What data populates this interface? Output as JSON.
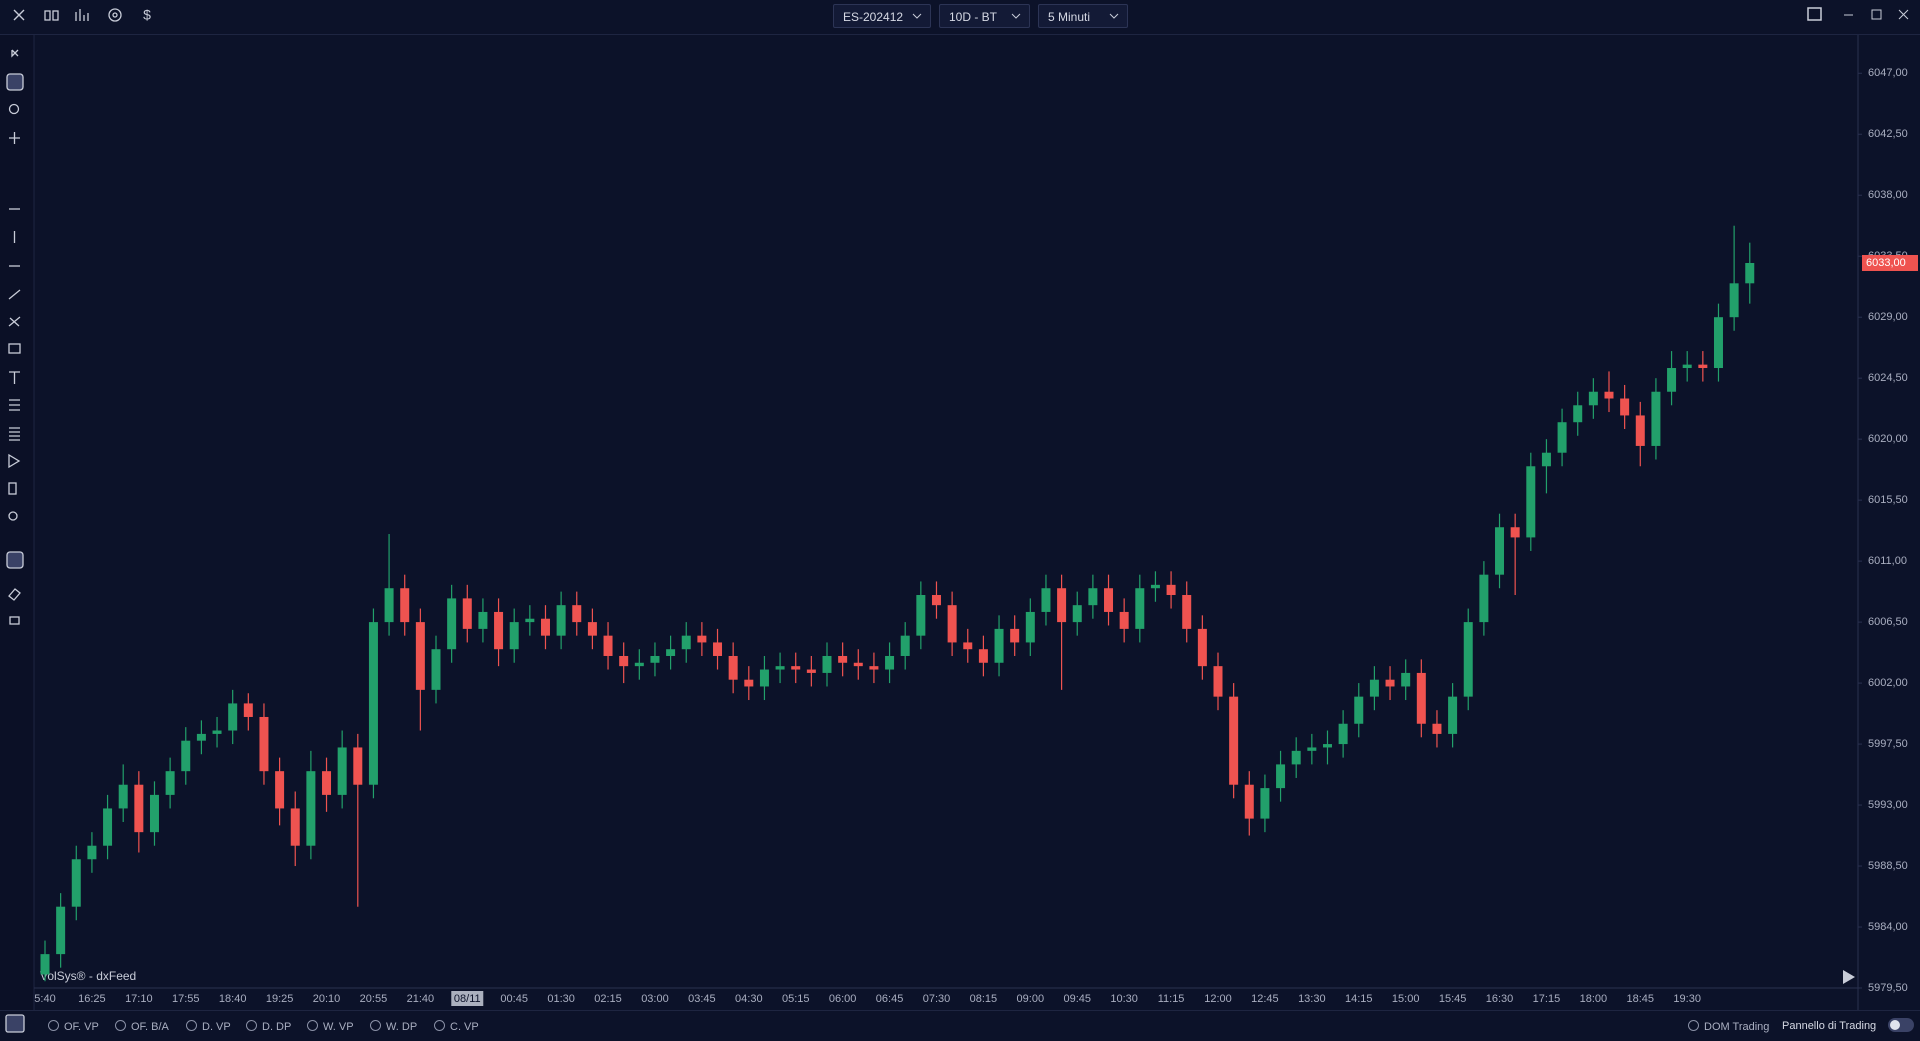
{
  "toolbar": {
    "symbol": "ES-202412",
    "range": "10D - BT",
    "timeframe": "5 Minuti",
    "currency": "$"
  },
  "watermark": "VolSys® - dxFeed",
  "bottom_bar": {
    "studies": [
      "OF. VP",
      "OF. B/A",
      "D. VP",
      "D. DP",
      "W. VP",
      "W. DP",
      "C. VP"
    ],
    "dom": "DOM Trading",
    "panel": "Pannello di Trading"
  },
  "chart_data": {
    "type": "candlestick",
    "categories": [
      "5:40",
      null,
      null,
      "16:25",
      null,
      null,
      "17:10",
      null,
      null,
      "17:55",
      null,
      null,
      "18:40",
      null,
      null,
      "19:25",
      null,
      null,
      "20:10",
      null,
      null,
      "20:55",
      null,
      null,
      "21:40",
      null,
      null,
      "08/11",
      null,
      null,
      "00:45",
      null,
      null,
      "01:30",
      null,
      null,
      "02:15",
      null,
      null,
      "03:00",
      null,
      null,
      "03:45",
      null,
      null,
      "04:30",
      null,
      null,
      "05:15",
      null,
      null,
      "06:00",
      null,
      null,
      "06:45",
      null,
      null,
      "07:30",
      null,
      null,
      "08:15",
      null,
      null,
      "09:00",
      null,
      null,
      "09:45",
      null,
      null,
      "10:30",
      null,
      null,
      "11:15",
      null,
      null,
      "12:00",
      null,
      null,
      "12:45",
      null,
      null,
      "13:30",
      null,
      null,
      "14:15",
      null,
      null,
      "15:00",
      null,
      null,
      "15:45",
      null,
      null,
      "16:30",
      null,
      null,
      "17:15",
      null,
      null,
      "18:00",
      null,
      null,
      "18:45",
      null,
      null,
      "19:30",
      null,
      null,
      null,
      null
    ],
    "open": [
      5980.5,
      5982,
      5985.5,
      5989,
      5990,
      5992.75,
      5994.5,
      5991,
      5993.75,
      5995.5,
      5997.75,
      5998.25,
      5998.5,
      6000.5,
      5999.5,
      5995.5,
      5992.75,
      5990,
      5995.5,
      5993.75,
      5997.25,
      5994.5,
      6006.5,
      6009,
      6006.5,
      6001.5,
      6004.5,
      6008.25,
      6006,
      6007.25,
      6004.5,
      6006.5,
      6006.75,
      6005.5,
      6007.75,
      6006.5,
      6005.5,
      6004,
      6003.25,
      6003.5,
      6004,
      6004.5,
      6005.5,
      6005,
      6004,
      6002.25,
      6001.75,
      6003,
      6003.25,
      6003,
      6002.75,
      6004,
      6003.5,
      6003.25,
      6003,
      6004,
      6005.5,
      6008.5,
      6007.75,
      6005,
      6004.5,
      6003.5,
      6006,
      6005,
      6007.25,
      6009,
      6006.5,
      6007.75,
      6009,
      6007.25,
      6006,
      6009,
      6009.25,
      6008.5,
      6006,
      6003.25,
      6001,
      5994.5,
      5992,
      5994.25,
      5996,
      5997,
      5997.25,
      5997.5,
      5999,
      6001,
      6002.25,
      6001.75,
      6002.75,
      5999,
      5998.25,
      6001,
      6006.5,
      6010,
      6013.5,
      6012.75,
      6018,
      6019,
      6021.25,
      6022.5,
      6023.5,
      6023,
      6021.75,
      6019.5,
      6023.5,
      6025.25,
      6025.5,
      6025.25,
      6029,
      6031.5
    ],
    "high": [
      5983,
      5986.5,
      5990,
      5991,
      5993.75,
      5996,
      5995.5,
      5994.75,
      5996.5,
      5998.75,
      5999.25,
      5999.5,
      6001.5,
      6001.25,
      6000.5,
      5996.5,
      5994,
      5997,
      5996.5,
      5998.5,
      5998.25,
      6007.5,
      6013,
      6010,
      6007.5,
      6005.5,
      6009.25,
      6009.25,
      6008.25,
      6008.25,
      6007.5,
      6007.75,
      6007.75,
      6008.75,
      6008.75,
      6007.5,
      6006.5,
      6005,
      6004.5,
      6005,
      6005.5,
      6006.5,
      6006.5,
      6006,
      6005,
      6003.25,
      6004,
      6004.25,
      6004.25,
      6004,
      6005,
      6005,
      6004.5,
      6004.25,
      6005,
      6006.5,
      6009.5,
      6009.5,
      6008.75,
      6006,
      6005.5,
      6007,
      6007,
      6008.25,
      6010,
      6010,
      6008.75,
      6010,
      6010,
      6008.25,
      6010,
      6010.25,
      6010.25,
      6009.5,
      6007,
      6004.25,
      6002,
      5995.5,
      5995.25,
      5997,
      5998,
      5998.25,
      5998.5,
      6000,
      6002,
      6003.25,
      6003.25,
      6003.75,
      6003.75,
      6000,
      6002,
      6007.5,
      6011,
      6014.5,
      6014.5,
      6019,
      6020,
      6022.25,
      6023.5,
      6024.5,
      6025,
      6024,
      6022.75,
      6024.5,
      6026.5,
      6026.5,
      6026.5,
      6030,
      6035.75,
      6034.5
    ],
    "low": [
      5980,
      5981,
      5984.5,
      5988,
      5989,
      5991.75,
      5989.5,
      5990,
      5992.75,
      5994.5,
      5996.75,
      5997.25,
      5997.5,
      5998.5,
      5994.5,
      5991.5,
      5988.5,
      5989,
      5992.5,
      5992.75,
      5985.5,
      5993.5,
      6005.5,
      6005.5,
      5998.5,
      6000.5,
      6003.5,
      6005,
      6005,
      6003.25,
      6003.5,
      6005.5,
      6004.5,
      6004.5,
      6005.5,
      6004.5,
      6003,
      6002,
      6002.25,
      6002.5,
      6003,
      6003.5,
      6004,
      6003,
      6001.25,
      6000.75,
      6000.75,
      6002,
      6002,
      6001.75,
      6001.75,
      6002.5,
      6002.25,
      6002,
      6002,
      6003,
      6004.5,
      6006.75,
      6004,
      6003.5,
      6002.5,
      6002.5,
      6004,
      6004,
      6006.25,
      6001.5,
      6005.5,
      6006.75,
      6006.25,
      6005,
      6005,
      6008,
      6007.5,
      6005,
      6002.25,
      6000,
      5993.5,
      5990.75,
      5991,
      5993.25,
      5995,
      5996,
      5996,
      5996.5,
      5998,
      6000,
      6000.75,
      6000.75,
      5998,
      5997.25,
      5997.25,
      6000,
      6005.5,
      6009,
      6008.5,
      6011.75,
      6016,
      6018,
      6020.25,
      6021.5,
      6022,
      6020.75,
      6018,
      6018.5,
      6022.5,
      6024.25,
      6024.25,
      6024.25,
      6028,
      6030
    ],
    "close": [
      5982,
      5985.5,
      5989,
      5990,
      5992.75,
      5994.5,
      5991,
      5993.75,
      5995.5,
      5997.75,
      5998.25,
      5998.5,
      6000.5,
      5999.5,
      5995.5,
      5992.75,
      5990,
      5995.5,
      5993.75,
      5997.25,
      5994.5,
      6006.5,
      6009,
      6006.5,
      6001.5,
      6004.5,
      6008.25,
      6006,
      6007.25,
      6004.5,
      6006.5,
      6006.75,
      6005.5,
      6007.75,
      6006.5,
      6005.5,
      6004,
      6003.25,
      6003.5,
      6004,
      6004.5,
      6005.5,
      6005,
      6004,
      6002.25,
      6001.75,
      6003,
      6003.25,
      6003,
      6002.75,
      6004,
      6003.5,
      6003.25,
      6003,
      6004,
      6005.5,
      6008.5,
      6007.75,
      6005,
      6004.5,
      6003.5,
      6006,
      6005,
      6007.25,
      6009,
      6006.5,
      6007.75,
      6009,
      6007.25,
      6006,
      6009,
      6009.25,
      6008.5,
      6006,
      6003.25,
      6001,
      5994.5,
      5992,
      5994.25,
      5996,
      5997,
      5997.25,
      5997.5,
      5999,
      6001,
      6002.25,
      6001.75,
      6002.75,
      5999,
      5998.25,
      6001,
      6006.5,
      6010,
      6013.5,
      6012.75,
      6018,
      6019,
      6021.25,
      6022.5,
      6023.5,
      6023,
      6021.75,
      6019.5,
      6023.5,
      6025.25,
      6025.5,
      6025.25,
      6029,
      6031.5,
      6033
    ],
    "up_color": "#22a06b",
    "down_color": "#ef5350",
    "ylim": [
      5979.5,
      6049.75
    ],
    "yticks": [
      {
        "value": 5979.5,
        "label": "5979,50"
      },
      {
        "value": 5984,
        "label": "5984,00"
      },
      {
        "value": 5988.5,
        "label": "5988,50"
      },
      {
        "value": 5993,
        "label": "5993,00"
      },
      {
        "value": 5997.5,
        "label": "5997,50"
      },
      {
        "value": 6002,
        "label": "6002,00"
      },
      {
        "value": 6006.5,
        "label": "6006,50"
      },
      {
        "value": 6011,
        "label": "6011,00"
      },
      {
        "value": 6015.5,
        "label": "6015,50"
      },
      {
        "value": 6020,
        "label": "6020,00"
      },
      {
        "value": 6024.5,
        "label": "6024,50"
      },
      {
        "value": 6029,
        "label": "6029,00"
      },
      {
        "value": 6033.5,
        "label": "6033,50"
      },
      {
        "value": 6038,
        "label": "6038,00"
      },
      {
        "value": 6042.5,
        "label": "6042,50"
      },
      {
        "value": 6047,
        "label": "6047,00"
      }
    ],
    "last_price": {
      "value": 6033,
      "label": "6033,00"
    },
    "grid": false
  }
}
